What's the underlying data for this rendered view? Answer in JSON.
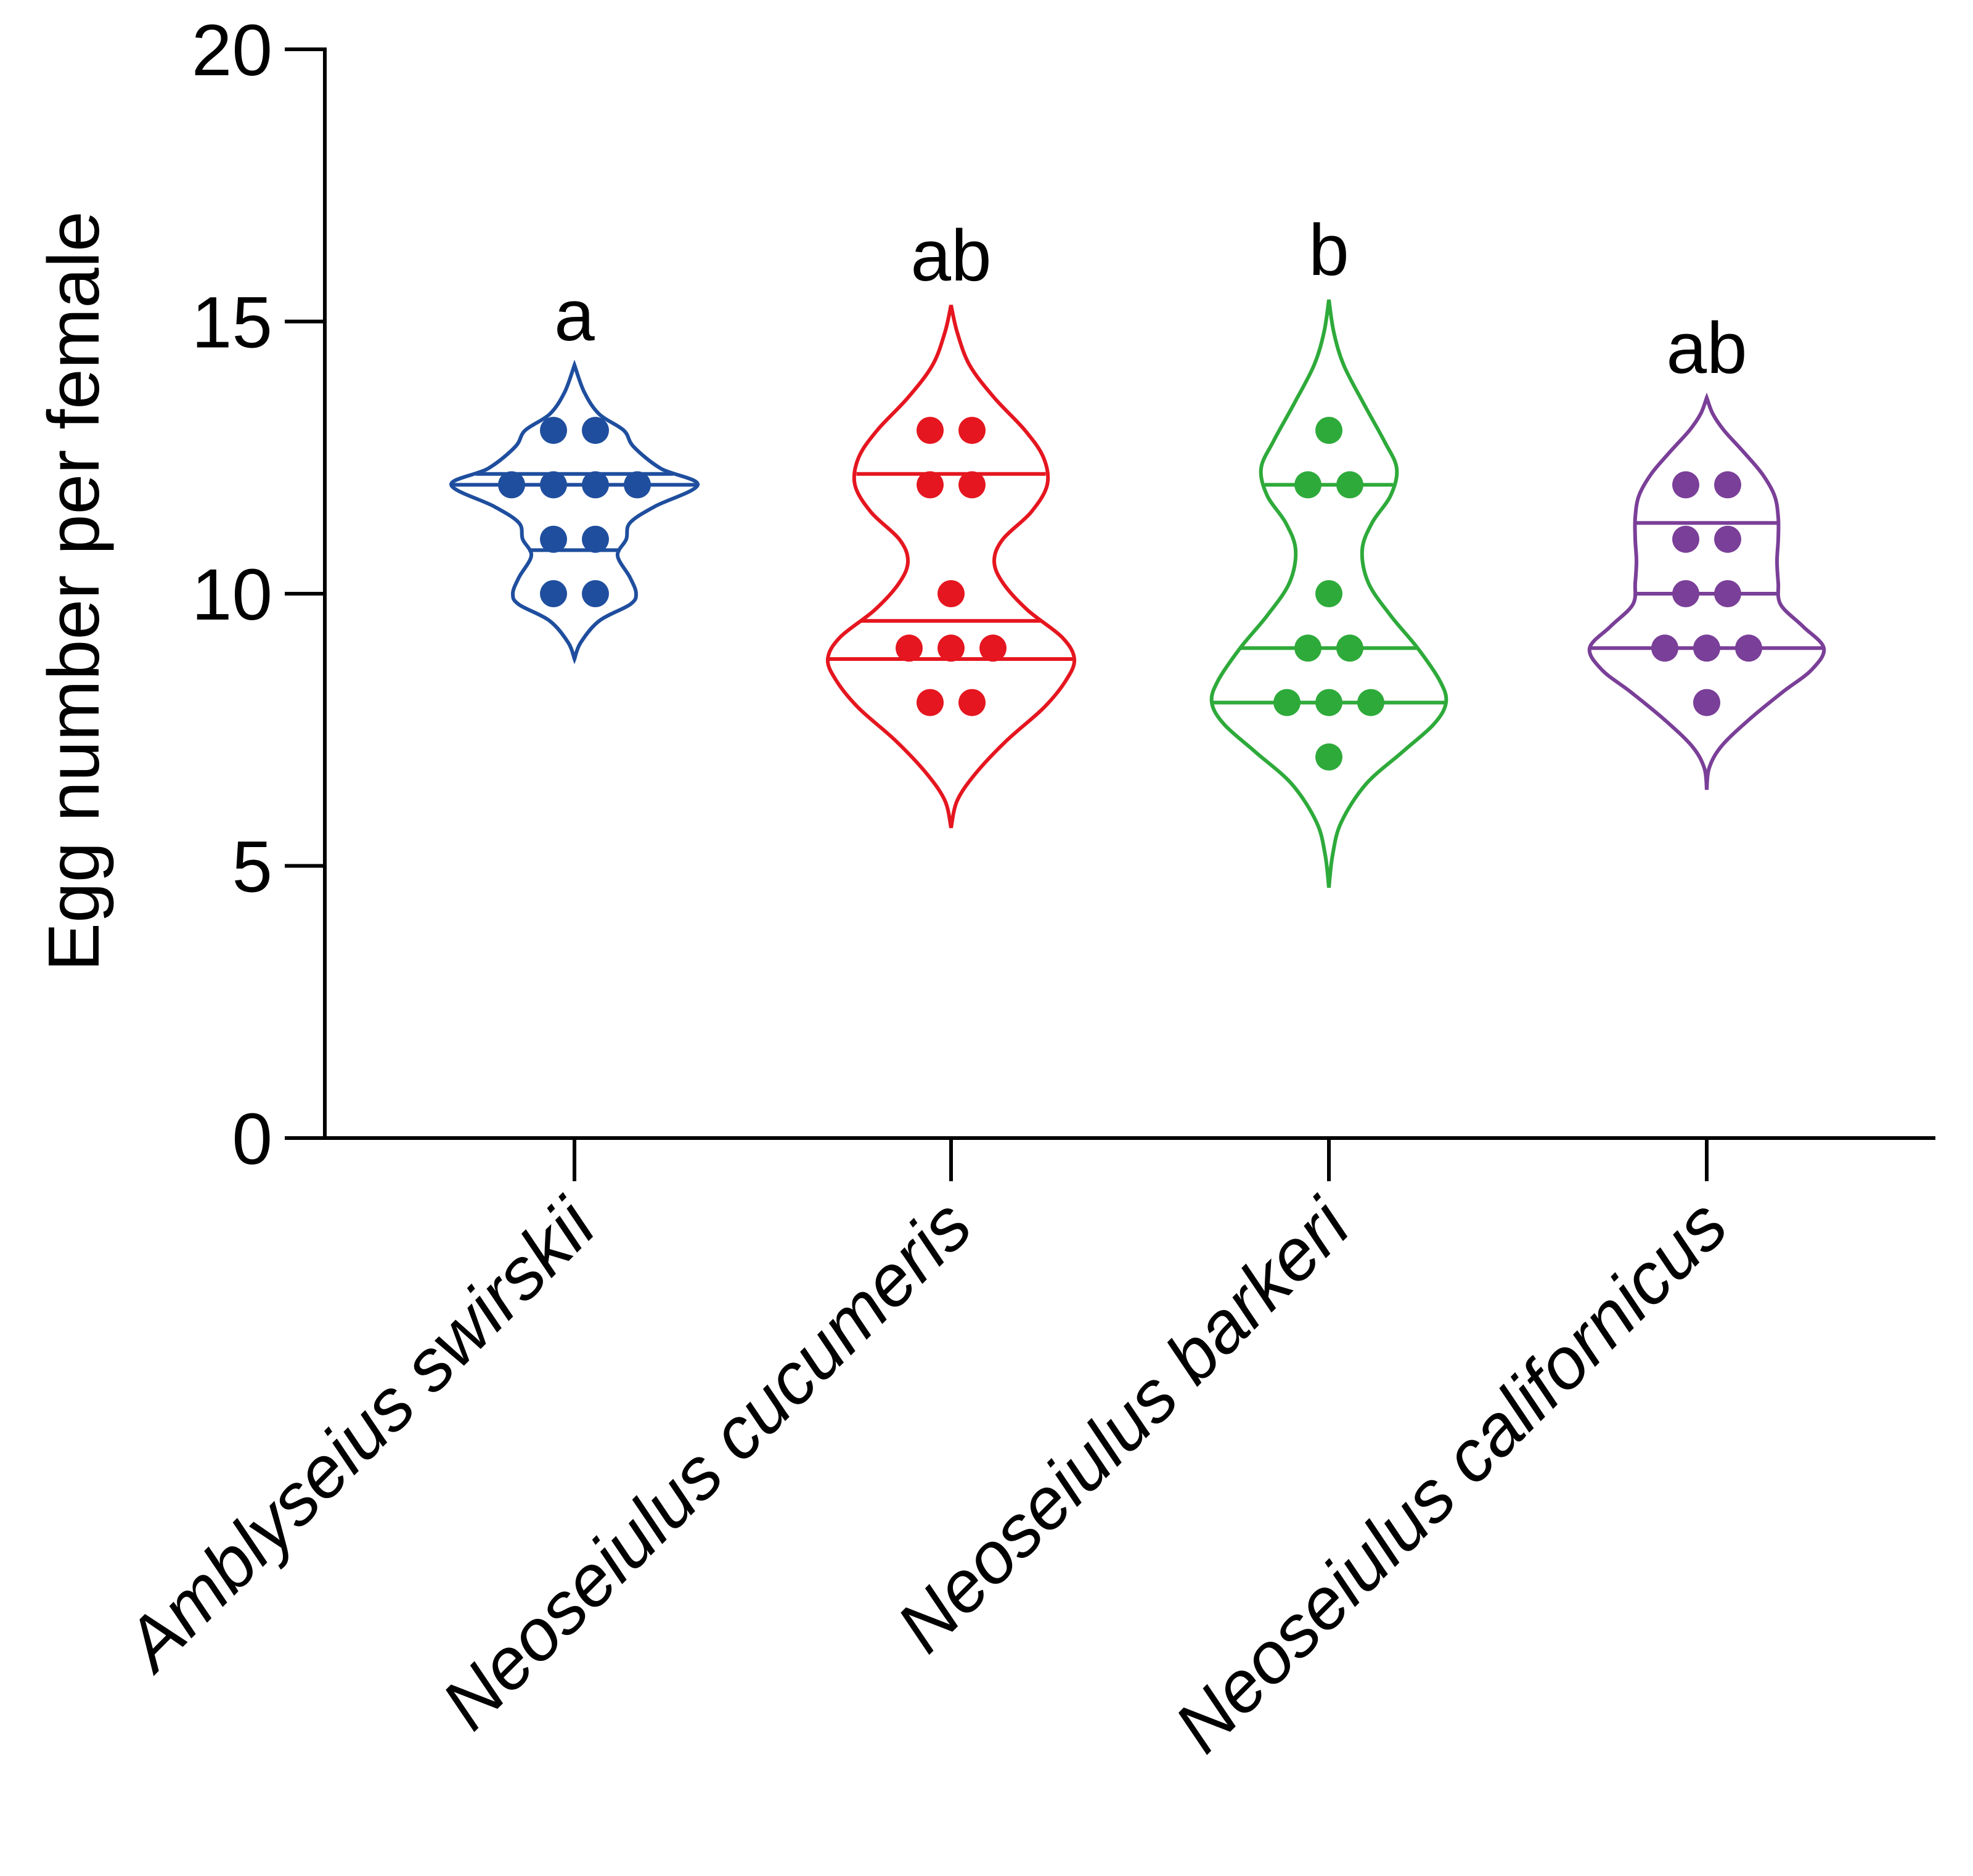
{
  "chart_data": {
    "type": "violin",
    "title": "",
    "xlabel": "",
    "ylabel": "Egg number per female",
    "ylim": [
      0,
      20
    ],
    "yticks": [
      0,
      5,
      10,
      15,
      20
    ],
    "categories": [
      "Amblyseius swirskii",
      "Neoseiulus cucumeris",
      "Neoseiulus barkeri",
      "Neoseiulus californicus"
    ],
    "series": [
      {
        "name": "Amblyseius swirskii",
        "color": "#1f4e9e",
        "significance": "a",
        "points": [
          13,
          13,
          12,
          12,
          12,
          12,
          11,
          11,
          10,
          10
        ],
        "range": [
          8.8,
          14.2
        ],
        "quartiles": [
          10.8,
          12.0,
          12.2
        ],
        "density": [
          [
            8.8,
            0.0
          ],
          [
            9.1,
            0.05
          ],
          [
            9.5,
            0.2
          ],
          [
            9.8,
            0.45
          ],
          [
            10.0,
            0.5
          ],
          [
            10.3,
            0.45
          ],
          [
            10.7,
            0.35
          ],
          [
            11.0,
            0.42
          ],
          [
            11.3,
            0.45
          ],
          [
            11.6,
            0.65
          ],
          [
            12.0,
            1.0
          ],
          [
            12.3,
            0.7
          ],
          [
            12.7,
            0.48
          ],
          [
            13.0,
            0.4
          ],
          [
            13.3,
            0.2
          ],
          [
            13.7,
            0.08
          ],
          [
            14.2,
            0.0
          ]
        ]
      },
      {
        "name": "Neoseiulus cucumeris",
        "color": "#e5161f",
        "significance": "ab",
        "points": [
          13,
          13,
          12,
          12,
          10,
          9,
          9,
          9,
          8,
          8
        ],
        "range": [
          5.7,
          15.3
        ],
        "quartiles": [
          8.8,
          9.5,
          12.2
        ],
        "density": [
          [
            5.7,
            0.0
          ],
          [
            6.2,
            0.05
          ],
          [
            6.7,
            0.2
          ],
          [
            7.3,
            0.45
          ],
          [
            7.9,
            0.75
          ],
          [
            8.4,
            0.93
          ],
          [
            8.8,
            1.0
          ],
          [
            9.2,
            0.9
          ],
          [
            9.7,
            0.62
          ],
          [
            10.2,
            0.42
          ],
          [
            10.6,
            0.35
          ],
          [
            11.0,
            0.42
          ],
          [
            11.5,
            0.65
          ],
          [
            12.0,
            0.78
          ],
          [
            12.5,
            0.75
          ],
          [
            13.0,
            0.6
          ],
          [
            13.6,
            0.35
          ],
          [
            14.2,
            0.15
          ],
          [
            14.8,
            0.05
          ],
          [
            15.3,
            0.0
          ]
        ]
      },
      {
        "name": "Neoseiulus barkeri",
        "color": "#2eaa3a",
        "significance": "b",
        "points": [
          13,
          12,
          12,
          10,
          9,
          9,
          8,
          8,
          8,
          7
        ],
        "range": [
          4.6,
          15.4
        ],
        "quartiles": [
          8.0,
          9.0,
          12.0
        ],
        "density": [
          [
            4.6,
            0.0
          ],
          [
            5.2,
            0.03
          ],
          [
            5.8,
            0.1
          ],
          [
            6.5,
            0.3
          ],
          [
            7.1,
            0.6
          ],
          [
            7.6,
            0.85
          ],
          [
            8.0,
            0.95
          ],
          [
            8.4,
            0.9
          ],
          [
            9.0,
            0.72
          ],
          [
            9.6,
            0.5
          ],
          [
            10.2,
            0.32
          ],
          [
            10.8,
            0.27
          ],
          [
            11.3,
            0.35
          ],
          [
            11.8,
            0.5
          ],
          [
            12.3,
            0.55
          ],
          [
            12.8,
            0.45
          ],
          [
            13.5,
            0.28
          ],
          [
            14.2,
            0.12
          ],
          [
            14.8,
            0.04
          ],
          [
            15.4,
            0.0
          ]
        ]
      },
      {
        "name": "Neoseiulus californicus",
        "color": "#7a3f98",
        "significance": "ab",
        "points": [
          12,
          12,
          11,
          11,
          10,
          10,
          9,
          9,
          9,
          8
        ],
        "range": [
          6.4,
          13.6
        ],
        "quartiles": [
          9.0,
          10.0,
          11.3
        ],
        "density": [
          [
            6.4,
            0.0
          ],
          [
            6.8,
            0.02
          ],
          [
            7.2,
            0.12
          ],
          [
            7.7,
            0.35
          ],
          [
            8.2,
            0.62
          ],
          [
            8.6,
            0.85
          ],
          [
            9.0,
            0.95
          ],
          [
            9.4,
            0.78
          ],
          [
            9.8,
            0.6
          ],
          [
            10.2,
            0.58
          ],
          [
            10.6,
            0.57
          ],
          [
            11.0,
            0.58
          ],
          [
            11.4,
            0.58
          ],
          [
            11.8,
            0.55
          ],
          [
            12.2,
            0.45
          ],
          [
            12.6,
            0.3
          ],
          [
            13.0,
            0.14
          ],
          [
            13.3,
            0.05
          ],
          [
            13.6,
            0.0
          ]
        ]
      }
    ]
  }
}
